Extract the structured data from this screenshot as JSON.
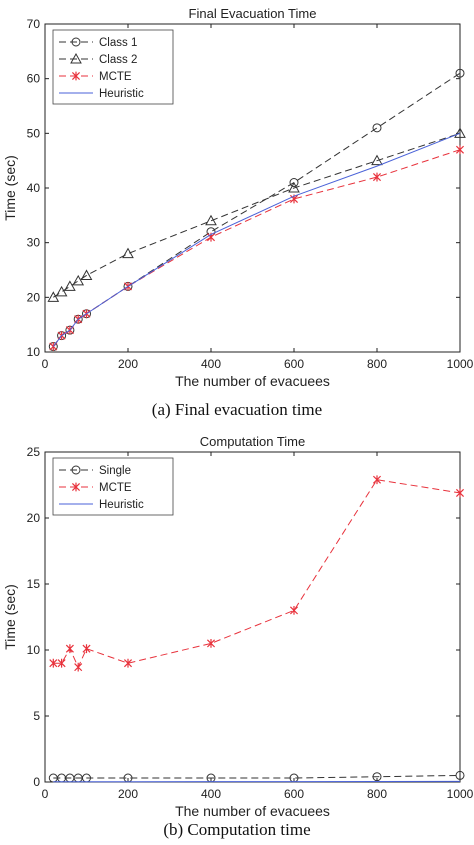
{
  "chart_data": [
    {
      "type": "line",
      "title": "Final Evacuation Time",
      "xlabel": "The number of evacuees",
      "ylabel": "Time (sec)",
      "xlim": [
        0,
        1000
      ],
      "ylim": [
        10,
        70
      ],
      "xticks": [
        0,
        200,
        400,
        600,
        800,
        1000
      ],
      "yticks": [
        10,
        20,
        30,
        40,
        50,
        60,
        70
      ],
      "legend_position": "top-left",
      "grid": false,
      "series": [
        {
          "name": "Class 1",
          "marker": "circle",
          "color": "#333333",
          "dash": "dashed",
          "x": [
            20,
            40,
            60,
            80,
            100,
            200,
            400,
            600,
            800,
            1000
          ],
          "y": [
            11,
            13,
            14,
            16,
            17,
            22,
            32,
            41,
            51,
            61
          ]
        },
        {
          "name": "Class 2",
          "marker": "triangle",
          "color": "#333333",
          "dash": "dashed",
          "x": [
            20,
            40,
            60,
            80,
            100,
            200,
            400,
            600,
            800,
            1000
          ],
          "y": [
            20,
            21,
            22,
            23,
            24,
            28,
            34,
            40,
            45,
            50
          ]
        },
        {
          "name": "MCTE",
          "marker": "star",
          "color": "#e8323c",
          "dash": "dashed",
          "x": [
            20,
            40,
            60,
            80,
            100,
            200,
            400,
            600,
            800,
            1000
          ],
          "y": [
            11,
            13,
            14,
            16,
            17,
            22,
            31,
            38,
            42,
            47
          ]
        },
        {
          "name": "Heuristic",
          "marker": "none",
          "color": "#4a62d8",
          "dash": "solid",
          "x": [
            20,
            40,
            60,
            80,
            100,
            200,
            400,
            600,
            800,
            1000
          ],
          "y": [
            11,
            13,
            14,
            16,
            17,
            22,
            31.5,
            38.5,
            44,
            50
          ]
        }
      ]
    },
    {
      "type": "line",
      "title": "Computation   Time",
      "xlabel": "The number of evacuees",
      "ylabel": "Time (sec)",
      "xlim": [
        0,
        1000
      ],
      "ylim": [
        0,
        25
      ],
      "xticks": [
        0,
        200,
        400,
        600,
        800,
        1000
      ],
      "yticks": [
        0,
        5,
        10,
        15,
        20,
        25
      ],
      "legend_position": "top-left",
      "grid": false,
      "series": [
        {
          "name": "Single",
          "marker": "circle",
          "color": "#333333",
          "dash": "dashed",
          "x": [
            20,
            40,
            60,
            80,
            100,
            200,
            400,
            600,
            800,
            1000
          ],
          "y": [
            0.3,
            0.3,
            0.3,
            0.3,
            0.3,
            0.3,
            0.3,
            0.3,
            0.4,
            0.5
          ]
        },
        {
          "name": "MCTE",
          "marker": "star",
          "color": "#e8323c",
          "dash": "dashed",
          "x": [
            20,
            40,
            60,
            80,
            100,
            200,
            400,
            600,
            800,
            1000
          ],
          "y": [
            9.0,
            9.0,
            10.1,
            8.7,
            10.1,
            9.0,
            10.5,
            13.0,
            22.9,
            21.9
          ]
        },
        {
          "name": "Heuristic",
          "marker": "none",
          "color": "#4a62d8",
          "dash": "solid",
          "x": [
            20,
            40,
            60,
            80,
            100,
            200,
            400,
            600,
            800,
            1000
          ],
          "y": [
            0.02,
            0.02,
            0.02,
            0.02,
            0.02,
            0.02,
            0.03,
            0.03,
            0.04,
            0.05
          ]
        }
      ]
    }
  ],
  "captions": {
    "a": "(a)  Final evacuation time",
    "b": "(b)  Computation time"
  }
}
